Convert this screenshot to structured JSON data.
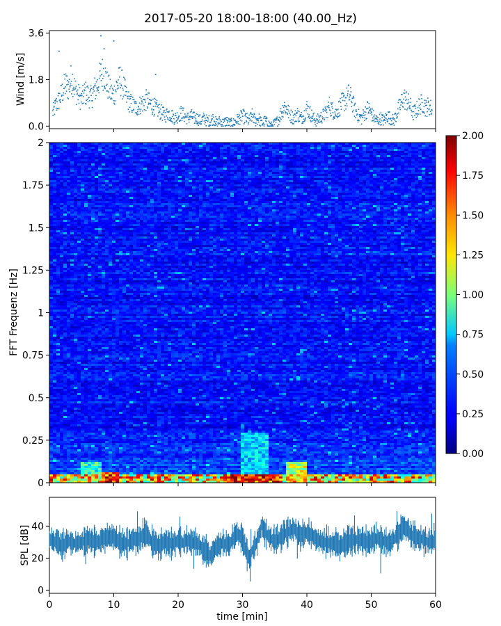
{
  "chart_data": [
    {
      "type": "scatter",
      "panel": "wind",
      "title": "2017-05-20 18:00-18:00 (40.00_Hz)",
      "ylabel": "Wind [m/s]",
      "xlim": [
        0,
        60
      ],
      "ylim": [
        -0.1,
        3.7
      ],
      "yticks": [
        "0.0",
        "1.8",
        "3.6"
      ],
      "yticks_values": [
        0.0,
        1.8,
        3.6
      ],
      "color": "#1f77b4",
      "series": [
        {
          "name": "wind",
          "x": [
            0.5,
            1,
            1.5,
            2,
            2.5,
            3,
            3.5,
            4,
            4.5,
            5,
            5.5,
            6,
            6.5,
            7,
            7.5,
            8,
            8.5,
            9,
            9.5,
            10,
            10.5,
            11,
            11.5,
            12,
            12.5,
            13,
            13.5,
            14,
            14.5,
            15,
            15.5,
            16,
            16.5,
            17,
            17.5,
            18,
            18.5,
            19,
            19.5,
            20,
            20.5,
            21,
            21.5,
            22,
            22.5,
            23,
            23.5,
            24,
            24.5,
            25,
            25.5,
            26,
            26.5,
            27,
            27.5,
            28,
            28.5,
            29,
            29.5,
            30,
            30.5,
            31,
            31.5,
            32,
            32.5,
            33,
            33.5,
            34,
            34.5,
            35,
            35.5,
            36,
            36.5,
            37,
            37.5,
            38,
            38.5,
            39,
            39.5,
            40,
            40.5,
            41,
            41.5,
            42,
            42.5,
            43,
            43.5,
            44,
            44.5,
            45,
            45.5,
            46,
            46.5,
            47,
            47.5,
            48,
            48.5,
            49,
            49.5,
            50,
            50.5,
            51,
            51.5,
            52,
            52.5,
            53,
            53.5,
            54,
            54.5,
            55,
            55.5,
            56,
            56.5,
            57,
            57.5,
            58,
            58.5,
            59,
            59.5
          ],
          "values": [
            0.5,
            0.8,
            1.0,
            1.3,
            1.6,
            1.5,
            1.9,
            1.4,
            1.2,
            1.0,
            1.3,
            1.2,
            1.1,
            1.4,
            1.6,
            2.0,
            2.1,
            1.6,
            1.3,
            1.2,
            1.6,
            1.8,
            1.5,
            1.1,
            0.9,
            0.8,
            0.7,
            0.8,
            0.9,
            1.0,
            0.9,
            0.8,
            0.7,
            0.6,
            0.5,
            0.4,
            0.5,
            0.4,
            0.3,
            0.4,
            0.5,
            0.4,
            0.3,
            0.4,
            0.3,
            0.3,
            0.2,
            0.3,
            0.2,
            0.2,
            0.3,
            0.1,
            0.2,
            0.1,
            0.2,
            0.1,
            0.1,
            0.2,
            0.3,
            0.4,
            0.3,
            0.2,
            0.4,
            0.2,
            0.3,
            0.1,
            0.2,
            0.1,
            0.0,
            0.1,
            0.2,
            0.5,
            0.8,
            0.6,
            0.4,
            0.3,
            0.5,
            0.3,
            0.4,
            0.7,
            0.5,
            0.3,
            0.2,
            0.3,
            0.4,
            0.5,
            0.8,
            0.6,
            0.5,
            0.7,
            0.9,
            1.0,
            1.2,
            1.0,
            0.6,
            0.4,
            0.3,
            0.5,
            0.7,
            0.5,
            0.3,
            0.2,
            0.3,
            0.2,
            0.4,
            0.3,
            0.2,
            0.5,
            0.8,
            1.1,
            1.0,
            0.8,
            0.5,
            0.6,
            0.8,
            0.9,
            0.7,
            0.8,
            0.6
          ]
        },
        {
          "name": "wind-peaks",
          "x": [
            1.5,
            8.0,
            8.5,
            10.0,
            16.5
          ],
          "values": [
            2.9,
            3.5,
            3.0,
            3.3,
            2.0
          ]
        }
      ]
    },
    {
      "type": "heatmap",
      "panel": "spectrogram",
      "ylabel": "FFT Frequenz [Hz]",
      "xlim": [
        0,
        60
      ],
      "ylim": [
        0,
        2
      ],
      "yticks": [
        "0",
        "0.25",
        "0.5",
        "0.75",
        "1",
        "1.25",
        "1.5",
        "1.75",
        "2"
      ],
      "yticks_values": [
        0,
        0.25,
        0.5,
        0.75,
        1,
        1.25,
        1.5,
        1.75,
        2
      ],
      "colormap": "jet",
      "note": "values mostly 0.15-0.45 (blue) across all frequencies; strong values (1.5-2.0, red) below 0.05 Hz, notably around 8-11 min and 27-36 min; moderate values (0.6-1.1) near 30-40 min up to 0.3 Hz",
      "hotspots": [
        {
          "t_min": 8,
          "t_max": 11,
          "f_max": 0.06,
          "value": 2.0
        },
        {
          "t_min": 27,
          "t_max": 36,
          "f_max": 0.05,
          "value": 2.0
        },
        {
          "t_min": 30,
          "t_max": 34,
          "f_max": 0.3,
          "value": 0.8
        },
        {
          "t_min": 37,
          "t_max": 40,
          "f_max": 0.12,
          "value": 1.4
        },
        {
          "t_min": 5,
          "t_max": 8,
          "f_max": 0.12,
          "value": 1.0
        }
      ]
    },
    {
      "type": "line",
      "panel": "spl",
      "ylabel": "SPL [dB]",
      "xlabel": "time [min]",
      "xlim": [
        0,
        60
      ],
      "ylim": [
        -2,
        58
      ],
      "yticks": [
        "0",
        "20",
        "40"
      ],
      "yticks_values": [
        0,
        20,
        40
      ],
      "xticks": [
        "0",
        "10",
        "20",
        "30",
        "40",
        "50",
        "60"
      ],
      "xticks_values": [
        0,
        10,
        20,
        30,
        40,
        50,
        60
      ],
      "color": "#1f77b4",
      "series": [
        {
          "name": "spl",
          "x": [
            0,
            1,
            2,
            3,
            4,
            5,
            6,
            7,
            8,
            9,
            10,
            11,
            12,
            13,
            14,
            15,
            16,
            17,
            18,
            19,
            20,
            21,
            22,
            23,
            24,
            25,
            26,
            27,
            28,
            29,
            30,
            31,
            32,
            33,
            34,
            35,
            36,
            37,
            38,
            39,
            40,
            41,
            42,
            43,
            44,
            45,
            46,
            47,
            48,
            49,
            50,
            51,
            52,
            53,
            54,
            55,
            56,
            57,
            58,
            59,
            60
          ],
          "values": [
            32,
            30,
            28,
            31,
            29,
            30,
            32,
            30,
            31,
            34,
            33,
            30,
            29,
            31,
            32,
            35,
            30,
            28,
            30,
            29,
            31,
            30,
            31,
            29,
            25,
            22,
            27,
            29,
            28,
            36,
            32,
            20,
            28,
            40,
            34,
            30,
            33,
            36,
            38,
            34,
            36,
            33,
            31,
            30,
            29,
            28,
            30,
            31,
            32,
            30,
            31,
            33,
            30,
            29,
            34,
            40,
            36,
            33,
            32,
            30,
            31
          ],
          "band": 7
        }
      ]
    },
    {
      "type": "colorbar",
      "panel": "colorbar",
      "range": [
        0,
        2
      ],
      "ticks": [
        "0.00",
        "0.25",
        "0.50",
        "0.75",
        "1.00",
        "1.25",
        "1.50",
        "1.75",
        "2.00"
      ],
      "ticks_values": [
        0,
        0.25,
        0.5,
        0.75,
        1,
        1.25,
        1.5,
        1.75,
        2
      ]
    }
  ]
}
